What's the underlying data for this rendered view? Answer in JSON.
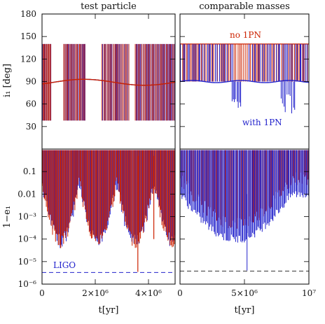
{
  "chart_data": [
    {
      "type": "line",
      "panel": "top-left",
      "title": "test particle",
      "ylabel": "i₁ [deg]",
      "ylim": [
        0,
        180
      ],
      "yticks": [
        30,
        60,
        90,
        120,
        150,
        180
      ],
      "ytick_labels": [
        "30",
        "60",
        "90",
        "120",
        "150",
        "180"
      ],
      "xlim": [
        0,
        5000000
      ],
      "series": [
        {
          "color": "#cc2200",
          "baseline_min": 84,
          "baseline_max": 94,
          "spike_high": 140,
          "spike_low": 38
        },
        {
          "color": "#2222cc",
          "baseline_min": 84,
          "baseline_max": 94,
          "spike_high": 140,
          "spike_low": 38
        }
      ]
    },
    {
      "type": "line",
      "panel": "top-right",
      "title": "comparable masses",
      "ylim": [
        0,
        180
      ],
      "xlim": [
        0,
        10000000
      ],
      "annotations": [
        "no 1PN",
        "with 1PN"
      ],
      "series": [
        {
          "color": "#cc2200",
          "baseline": 90,
          "spike_high": 140
        },
        {
          "color": "#2222cc",
          "baseline": 90,
          "spike_high": 140,
          "dip_low": 45
        }
      ]
    },
    {
      "type": "line",
      "panel": "bottom-left",
      "ylabel": "1−e₁",
      "xlabel": "t[yr]",
      "yscale": "log",
      "ylim": [
        1e-06,
        1
      ],
      "yticks": [
        1e-06,
        1e-05,
        0.0001,
        0.001,
        0.01,
        0.1
      ],
      "ytick_labels": [
        "10⁻⁶",
        "10⁻⁵",
        "10⁻⁴",
        "10⁻³",
        "0.01",
        "0.1"
      ],
      "xlim": [
        0,
        5000000
      ],
      "xticks": [
        0,
        2000000,
        4000000
      ],
      "xtick_labels": [
        "0",
        "2×10⁶",
        "4×10⁶"
      ],
      "annotations": [
        "LIGO"
      ],
      "ligo_level": 3.3e-06
    },
    {
      "type": "line",
      "panel": "bottom-right",
      "xlabel": "t[yr]",
      "yscale": "log",
      "ylim": [
        1e-06,
        1
      ],
      "xlim": [
        0,
        10000000
      ],
      "xticks": [
        0,
        5000000,
        10000000
      ],
      "xtick_labels": [
        "0",
        "5×10⁶",
        "10⁷"
      ],
      "ligo_level": 3.8e-06
    }
  ]
}
